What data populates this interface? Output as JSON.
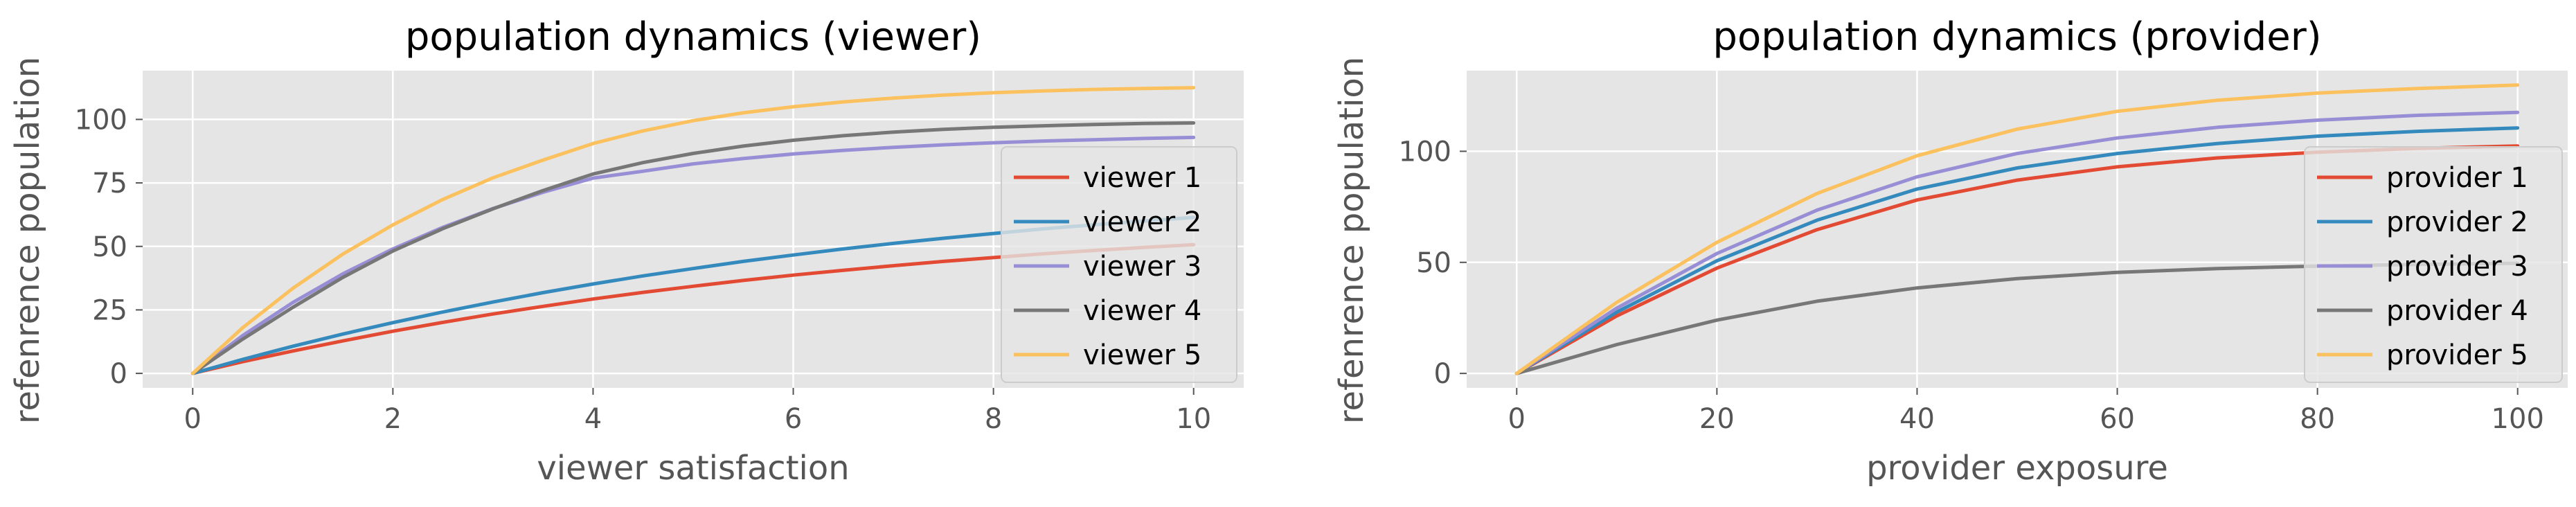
{
  "chart_data": [
    {
      "type": "line",
      "title": "population dynamics (viewer)",
      "xlabel": "viewer satisfaction",
      "ylabel": "refenrence population",
      "xlim": [
        -0.5,
        10.5
      ],
      "ylim": [
        -5.7,
        119.2
      ],
      "xticks": [
        0,
        2,
        4,
        6,
        8,
        10
      ],
      "yticks": [
        0,
        25,
        50,
        75,
        100
      ],
      "grid": true,
      "legend_position": "right",
      "x": [
        0,
        0.5,
        1,
        1.5,
        2,
        2.5,
        3,
        3.5,
        4,
        4.5,
        5,
        5.5,
        6,
        6.5,
        7,
        7.5,
        8,
        8.5,
        9,
        9.5,
        10
      ],
      "series": [
        {
          "name": "viewer 1",
          "color": "#E24A33",
          "values": [
            0,
            4.6,
            8.8,
            12.8,
            16.6,
            20.1,
            23.4,
            26.4,
            29.3,
            31.9,
            34.3,
            36.6,
            38.7,
            40.6,
            42.4,
            44.1,
            45.6,
            47.1,
            48.4,
            49.6,
            50.7
          ]
        },
        {
          "name": "viewer 2",
          "color": "#348ABD",
          "values": [
            0,
            5.5,
            10.7,
            15.5,
            20.0,
            24.2,
            28.1,
            31.8,
            35.2,
            38.4,
            41.3,
            44.1,
            46.6,
            49.0,
            51.2,
            53.2,
            55.1,
            56.9,
            58.5,
            60.0,
            61.4
          ]
        },
        {
          "name": "viewer 3",
          "color": "#988ED5",
          "values": [
            0,
            14.9,
            27.9,
            39.2,
            49.0,
            57.5,
            64.9,
            71.3,
            76.9,
            79.6,
            82.5,
            84.6,
            86.4,
            87.8,
            89.0,
            90.0,
            90.8,
            91.5,
            92.0,
            92.5,
            92.9
          ]
        },
        {
          "name": "viewer 4",
          "color": "#777777",
          "values": [
            0,
            13.5,
            26.0,
            37.8,
            48.2,
            57.0,
            64.8,
            72.0,
            78.5,
            83.0,
            86.6,
            89.5,
            91.8,
            93.6,
            95.0,
            96.1,
            96.9,
            97.5,
            98.0,
            98.4,
            98.6
          ]
        },
        {
          "name": "viewer 5",
          "color": "#FBC15E",
          "values": [
            0,
            18.0,
            33.5,
            47.0,
            58.5,
            68.5,
            77.0,
            84.0,
            90.5,
            95.5,
            99.5,
            102.6,
            105.0,
            106.9,
            108.4,
            109.6,
            110.5,
            111.2,
            111.8,
            112.2,
            112.5
          ]
        }
      ]
    },
    {
      "type": "line",
      "title": "population dynamics (provider)",
      "xlabel": "provider exposure",
      "ylabel": "refenrence population",
      "xlim": [
        -5,
        105
      ],
      "ylim": [
        -6.5,
        136.3
      ],
      "xticks": [
        0,
        20,
        40,
        60,
        80,
        100
      ],
      "yticks": [
        0,
        50,
        100
      ],
      "grid": true,
      "legend_position": "right",
      "x": [
        0,
        10,
        20,
        30,
        40,
        50,
        60,
        70,
        80,
        90,
        100
      ],
      "series": [
        {
          "name": "provider 1",
          "color": "#E24A33",
          "values": [
            0,
            25.9,
            47.4,
            64.7,
            78.1,
            87.0,
            93.0,
            97.0,
            99.6,
            101.3,
            102.4
          ]
        },
        {
          "name": "provider 2",
          "color": "#348ABD",
          "values": [
            0,
            27.6,
            50.7,
            69.0,
            83.0,
            92.5,
            99.0,
            103.5,
            106.8,
            109.0,
            110.5
          ]
        },
        {
          "name": "provider 3",
          "color": "#988ED5",
          "values": [
            0,
            29.4,
            54.0,
            73.5,
            88.5,
            99.0,
            106.0,
            110.8,
            114.0,
            116.2,
            117.5
          ]
        },
        {
          "name": "provider 4",
          "color": "#777777",
          "values": [
            0,
            13.0,
            24.0,
            32.5,
            38.5,
            42.7,
            45.5,
            47.2,
            48.3,
            49.1,
            49.6
          ]
        },
        {
          "name": "provider 5",
          "color": "#FBC15E",
          "values": [
            0,
            32.0,
            59.0,
            81.0,
            98.0,
            110.0,
            118.0,
            123.0,
            126.2,
            128.3,
            129.8
          ]
        }
      ]
    }
  ]
}
